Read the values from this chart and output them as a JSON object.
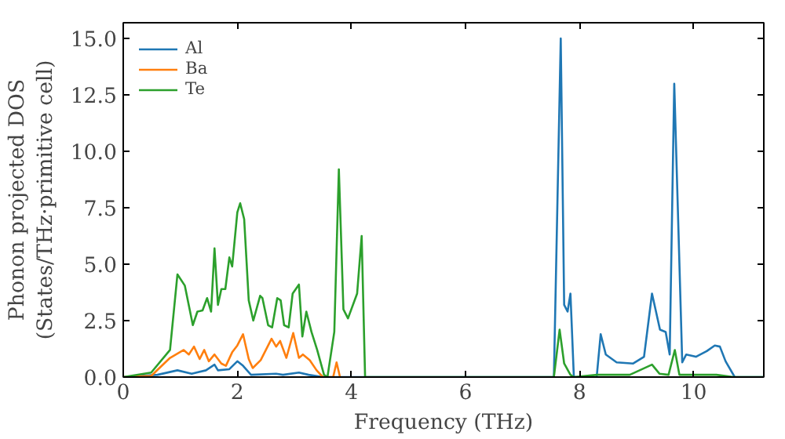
{
  "chart_data": {
    "type": "line",
    "xlabel": "Frequency (THz)",
    "ylabel": "Phonon projected DOS\n(States/THz·primitive cell)",
    "xlim": [
      0,
      11.23
    ],
    "ylim": [
      0,
      15.7
    ],
    "xticks": [
      0,
      2,
      4,
      6,
      8,
      10
    ],
    "yticks": [
      {
        "value": 0,
        "label": "0.0"
      },
      {
        "value": 2.5,
        "label": "2.5"
      },
      {
        "value": 5,
        "label": "5.0"
      },
      {
        "value": 7.5,
        "label": "7.5"
      },
      {
        "value": 10,
        "label": "10.0"
      },
      {
        "value": 12.5,
        "label": "12.5"
      },
      {
        "value": 15,
        "label": "15.0"
      }
    ],
    "legend": "top left",
    "grid": false,
    "series": [
      {
        "name": "Al",
        "color": "#1f77b4",
        "x": [
          0,
          0.6,
          0.95,
          1.2,
          1.45,
          1.6,
          1.66,
          1.86,
          2.0,
          2.1,
          2.24,
          2.68,
          2.8,
          3.08,
          3.25,
          3.5,
          7.55,
          7.67,
          7.73,
          7.79,
          7.84,
          7.9,
          8.3,
          8.37,
          8.46,
          8.65,
          8.94,
          9.13,
          9.27,
          9.41,
          9.51,
          9.58,
          9.66,
          9.8,
          9.87,
          10.04,
          10.23,
          10.37,
          10.46,
          10.56,
          10.72,
          11.23
        ],
        "values": [
          0,
          0.1,
          0.3,
          0.15,
          0.3,
          0.55,
          0.3,
          0.35,
          0.7,
          0.5,
          0.1,
          0.15,
          0.1,
          0.2,
          0.1,
          0,
          0,
          15.0,
          3.2,
          2.9,
          3.7,
          0,
          0,
          1.9,
          1.0,
          0.65,
          0.6,
          0.9,
          3.7,
          2.1,
          2.0,
          1.0,
          13.0,
          0.65,
          1.0,
          0.9,
          1.15,
          1.4,
          1.35,
          0.7,
          0,
          0
        ]
      },
      {
        "name": "Ba",
        "color": "#ff7f0e",
        "x": [
          0,
          0.49,
          0.82,
          1.06,
          1.15,
          1.24,
          1.34,
          1.42,
          1.5,
          1.6,
          1.72,
          1.8,
          1.91,
          2.0,
          2.1,
          2.2,
          2.27,
          2.41,
          2.6,
          2.68,
          2.75,
          2.86,
          2.98,
          3.08,
          3.15,
          3.27,
          3.39,
          3.5,
          3.68,
          3.74,
          3.8
        ],
        "values": [
          0,
          0.05,
          0.85,
          1.2,
          1.0,
          1.35,
          0.8,
          1.2,
          0.7,
          1.0,
          0.6,
          0.5,
          1.1,
          1.4,
          1.9,
          0.8,
          0.4,
          0.75,
          1.7,
          1.35,
          1.6,
          0.85,
          1.95,
          0.85,
          1.0,
          0.75,
          0.3,
          0,
          0,
          0.65,
          0
        ]
      },
      {
        "name": "Te",
        "color": "#2ca02c",
        "x": [
          0,
          0.49,
          0.82,
          0.95,
          1.08,
          1.22,
          1.3,
          1.39,
          1.47,
          1.54,
          1.6,
          1.66,
          1.72,
          1.79,
          1.86,
          1.91,
          2.0,
          2.05,
          2.12,
          2.2,
          2.28,
          2.4,
          2.44,
          2.54,
          2.61,
          2.7,
          2.76,
          2.82,
          2.9,
          2.97,
          3.08,
          3.14,
          3.21,
          3.3,
          3.4,
          3.52,
          3.58,
          3.7,
          3.78,
          3.86,
          3.94,
          4.1,
          4.18,
          4.24,
          7.55,
          7.65,
          7.73,
          7.84,
          7.9,
          8.31,
          8.88,
          9.27,
          9.4,
          9.56,
          9.67,
          9.75,
          10.4,
          10.7,
          11.23
        ],
        "values": [
          0,
          0.2,
          1.2,
          4.55,
          4.05,
          2.3,
          2.9,
          2.95,
          3.5,
          2.9,
          5.7,
          3.2,
          3.9,
          3.9,
          5.3,
          4.9,
          7.3,
          7.7,
          7.0,
          3.4,
          2.5,
          3.6,
          3.5,
          2.3,
          2.2,
          3.5,
          3.4,
          2.3,
          2.2,
          3.7,
          4.1,
          1.8,
          2.9,
          2.0,
          1.2,
          0.1,
          0,
          2.0,
          9.2,
          3.0,
          2.6,
          3.7,
          6.25,
          0,
          0,
          2.1,
          0.6,
          0.1,
          0,
          0.1,
          0.1,
          0.55,
          0.15,
          0.1,
          1.2,
          0.1,
          0.1,
          0,
          0
        ]
      }
    ]
  }
}
